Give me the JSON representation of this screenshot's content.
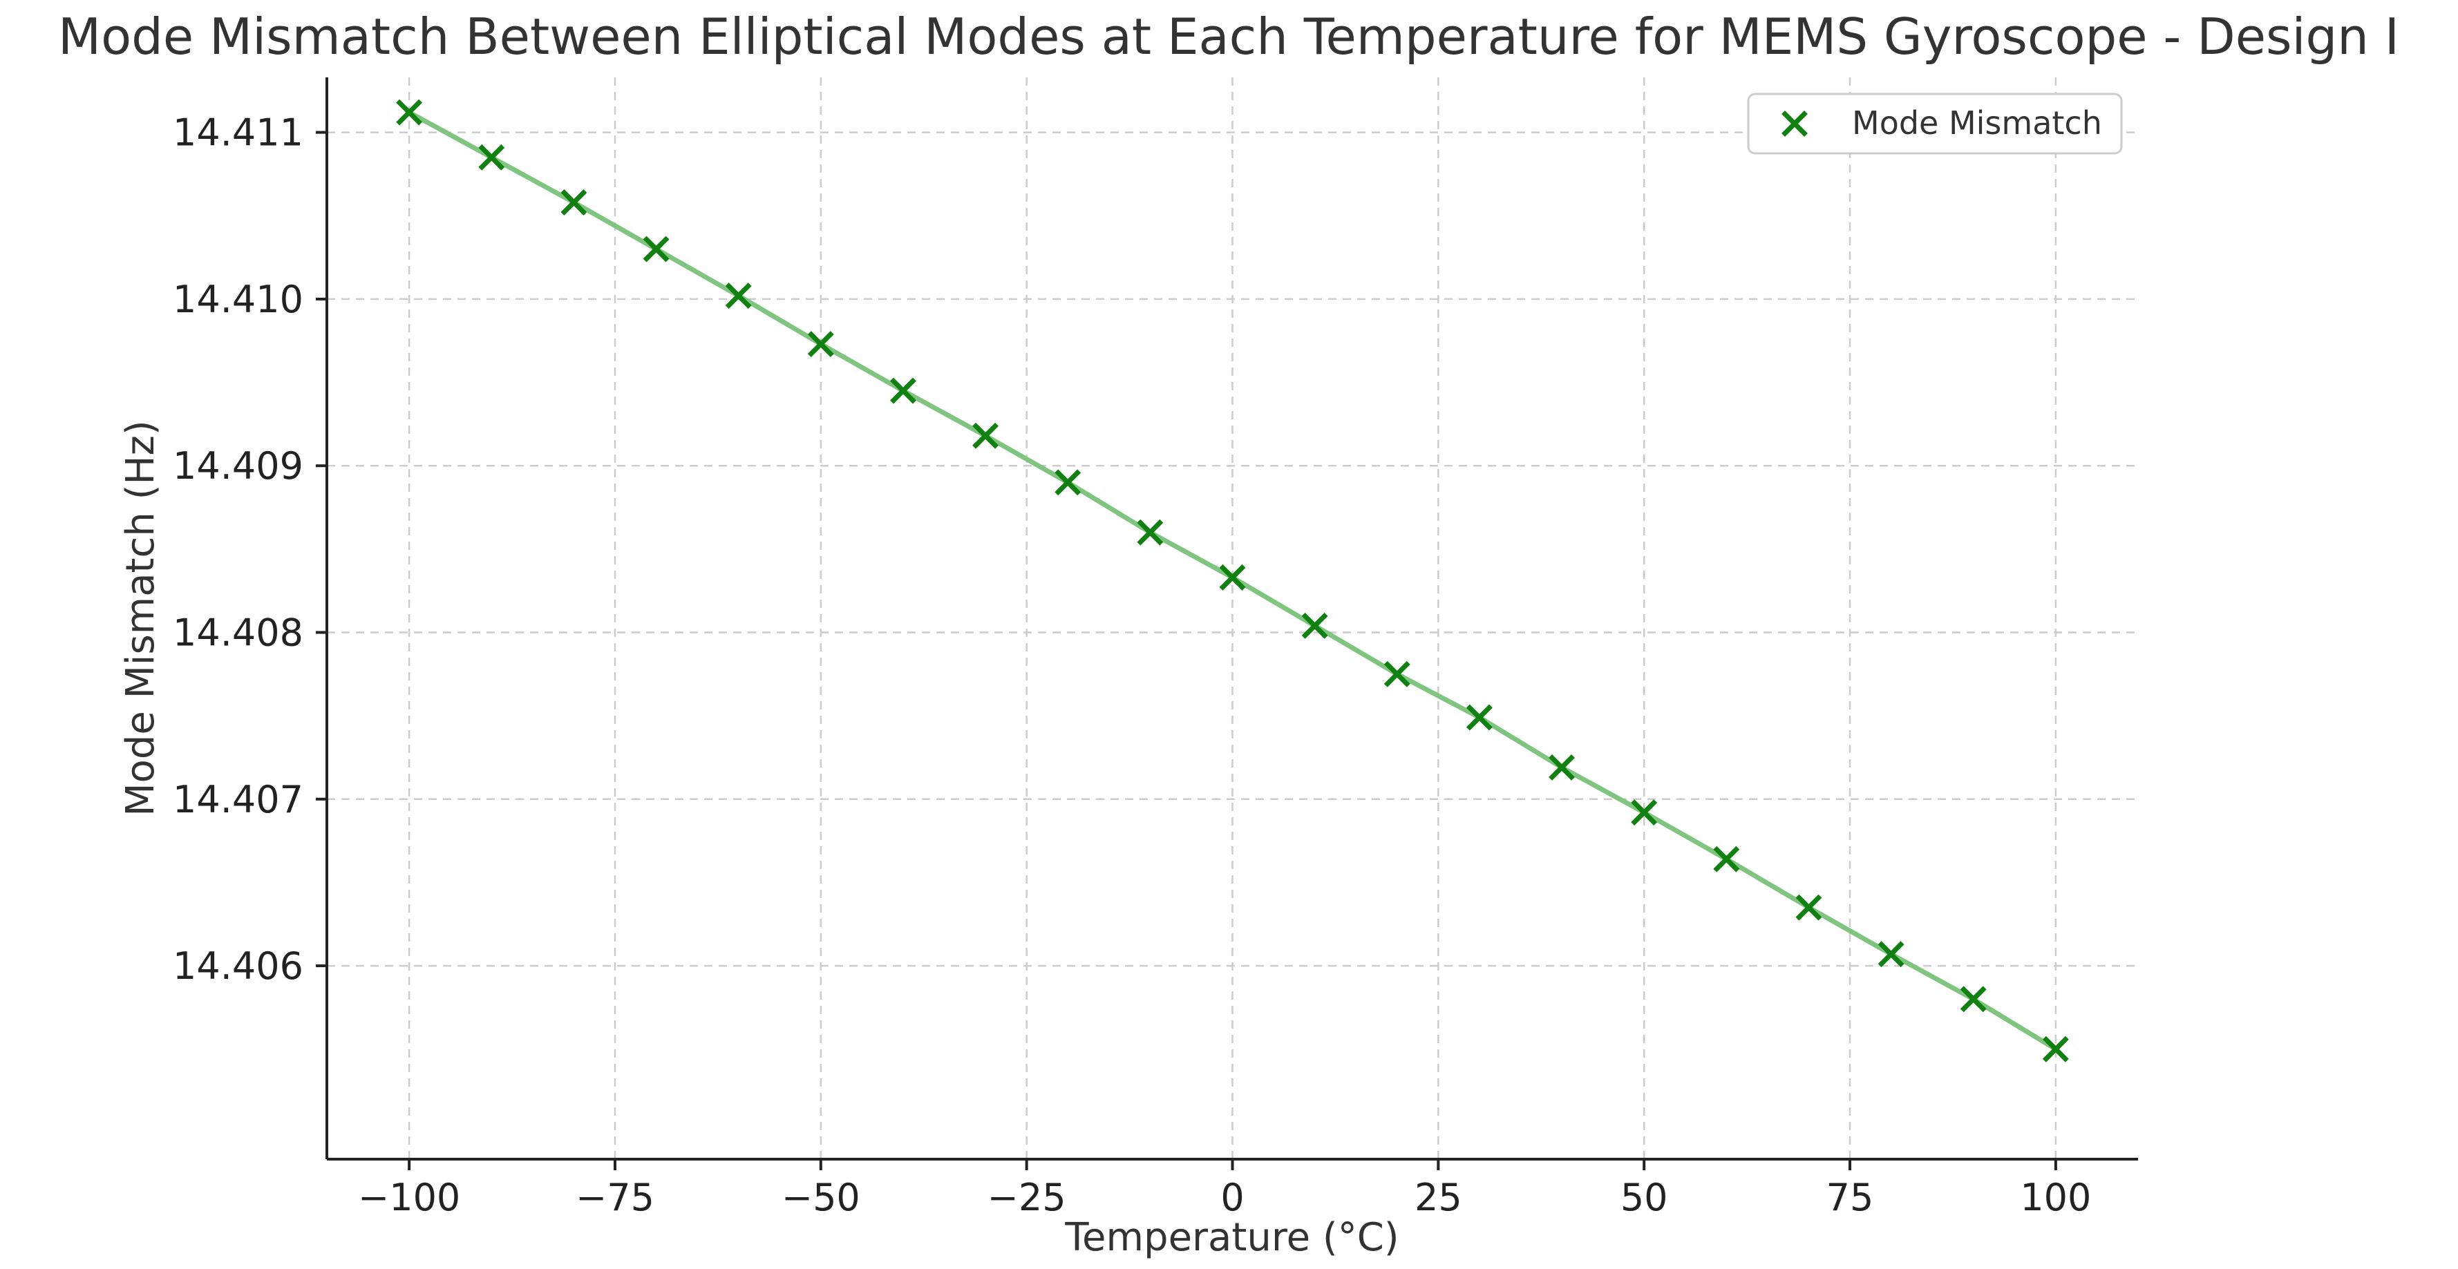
{
  "chart_data": {
    "type": "line",
    "title": "Mode Mismatch Between Elliptical Modes at Each Temperature for MEMS Gyroscope - Design I",
    "xlabel": "Temperature (°C)",
    "ylabel": "Mode Mismatch (Hz)",
    "xlim": [
      -110,
      110
    ],
    "ylim": [
      14.40484,
      14.41133
    ],
    "xticks": [
      -100,
      -75,
      -50,
      -25,
      0,
      25,
      50,
      75,
      100
    ],
    "xtick_labels": [
      "−100",
      "−75",
      "−50",
      "−25",
      "0",
      "25",
      "50",
      "75",
      "100"
    ],
    "yticks": [
      14.406,
      14.407,
      14.408,
      14.409,
      14.41,
      14.411
    ],
    "ytick_labels": [
      "14.406",
      "14.407",
      "14.408",
      "14.409",
      "14.410",
      "14.411"
    ],
    "grid": true,
    "legend_position": "top-right",
    "series": [
      {
        "name": "Mode Mismatch",
        "color": "#108010",
        "line_color": "#7fc47f",
        "marker": "x",
        "x": [
          -100,
          -90,
          -80,
          -70,
          -60,
          -50,
          -40,
          -30,
          -20,
          -10,
          0,
          10,
          20,
          30,
          40,
          50,
          60,
          70,
          80,
          90,
          100
        ],
        "y": [
          14.41112,
          14.41085,
          14.41058,
          14.4103,
          14.41002,
          14.40973,
          14.40945,
          14.40918,
          14.4089,
          14.4086,
          14.40833,
          14.40804,
          14.40775,
          14.40749,
          14.40719,
          14.40692,
          14.40664,
          14.40635,
          14.40607,
          14.4058,
          14.4055
        ]
      }
    ]
  }
}
